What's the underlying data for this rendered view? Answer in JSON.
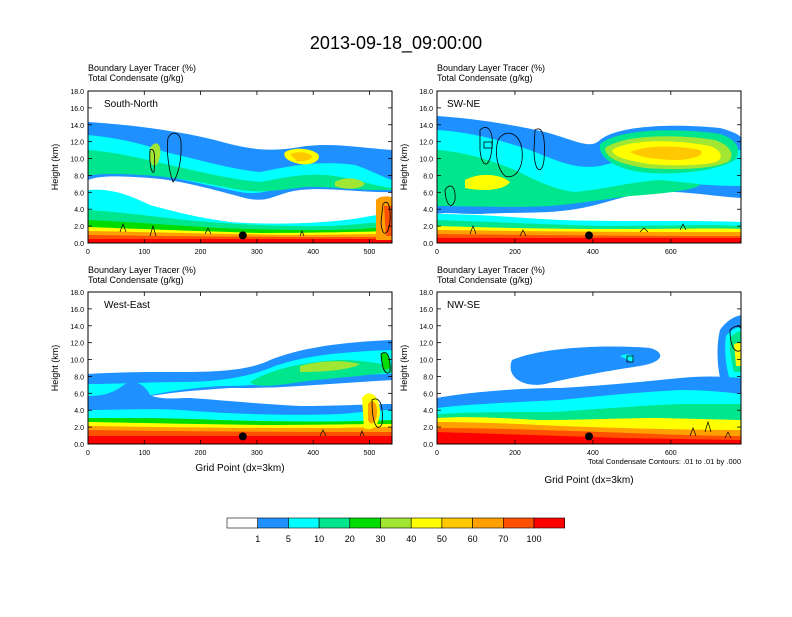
{
  "title": "2013-09-18_09:00:00",
  "panel_header": {
    "line1": "Boundary Layer Tracer   (%)",
    "line2": "Total Condensate   (g/kg)"
  },
  "xlabel": "Grid Point (dx=3km)",
  "ylabel": "Height (km)",
  "contour_note": "Total Condensate Contours: .01 to .01 by .000",
  "colorbar": {
    "colors": [
      "#ffffff",
      "#1e90ff",
      "#00ffff",
      "#00e68c",
      "#00dc00",
      "#a0e632",
      "#ffff00",
      "#ffc800",
      "#ffa000",
      "#ff5000",
      "#ff0000"
    ],
    "labels": [
      "1",
      "5",
      "10",
      "20",
      "30",
      "40",
      "50",
      "60",
      "70",
      "100"
    ]
  },
  "chart_data": [
    {
      "type": "heatmap",
      "name": "South-North",
      "label": "South-North",
      "xlim": [
        0,
        540
      ],
      "ylim": [
        0,
        18
      ],
      "xticks": [
        "0",
        "100",
        "200",
        "300",
        "400",
        "500"
      ],
      "yticks": [
        "0.0",
        "2.0",
        "4.0",
        "6.0",
        "8.0",
        "10.0",
        "12.0",
        "14.0",
        "16.0",
        "18.0"
      ],
      "marker": {
        "x": 275,
        "y": 0.9
      }
    },
    {
      "type": "heatmap",
      "name": "SW-NE",
      "label": "SW-NE",
      "xlim": [
        0,
        780
      ],
      "ylim": [
        0,
        18
      ],
      "xticks": [
        "0",
        "200",
        "400",
        "600"
      ],
      "yticks": [
        "0.0",
        "2.0",
        "4.0",
        "6.0",
        "8.0",
        "10.0",
        "12.0",
        "14.0",
        "16.0",
        "18.0"
      ],
      "marker": {
        "x": 390,
        "y": 0.9
      }
    },
    {
      "type": "heatmap",
      "name": "West-East",
      "label": "West-East",
      "xlim": [
        0,
        540
      ],
      "ylim": [
        0,
        18
      ],
      "xticks": [
        "0",
        "100",
        "200",
        "300",
        "400",
        "500"
      ],
      "yticks": [
        "0.0",
        "2.0",
        "4.0",
        "6.0",
        "8.0",
        "10.0",
        "12.0",
        "14.0",
        "16.0",
        "18.0"
      ],
      "marker": {
        "x": 275,
        "y": 0.9
      }
    },
    {
      "type": "heatmap",
      "name": "NW-SE",
      "label": "NW-SE",
      "xlim": [
        0,
        780
      ],
      "ylim": [
        0,
        18
      ],
      "xticks": [
        "0",
        "200",
        "400",
        "600"
      ],
      "yticks": [
        "0.0",
        "2.0",
        "4.0",
        "6.0",
        "8.0",
        "10.0",
        "12.0",
        "14.0",
        "16.0",
        "18.0"
      ],
      "marker": {
        "x": 390,
        "y": 0.9
      }
    }
  ]
}
